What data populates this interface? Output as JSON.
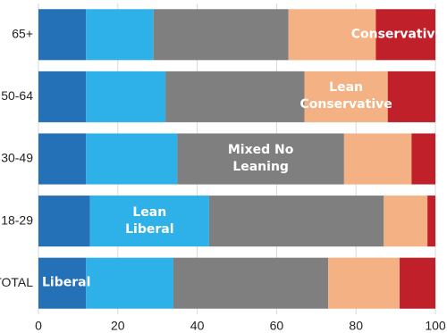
{
  "chart_data": {
    "type": "stacked-barh",
    "categories": [
      "65+",
      "50-64",
      "30-49",
      "18-29",
      "TOTAL"
    ],
    "series": [
      {
        "name": "Liberal",
        "color": "#2571b8",
        "values": [
          12,
          12,
          12,
          13,
          12
        ]
      },
      {
        "name": "Lean Liberal",
        "color": "#2eb1e8",
        "values": [
          17,
          20,
          23,
          30,
          22
        ]
      },
      {
        "name": "Mixed No Leaning",
        "color": "#7f7f7f",
        "values": [
          34,
          35,
          42,
          44,
          39
        ]
      },
      {
        "name": "Lean Conservative",
        "color": "#f4b183",
        "values": [
          22,
          21,
          17,
          11,
          18
        ]
      },
      {
        "name": "Conservative",
        "color": "#c0202a",
        "values": [
          15,
          12,
          6,
          2,
          9
        ]
      }
    ],
    "xlim": [
      0,
      100
    ],
    "xticks": [
      0,
      20,
      40,
      60,
      80,
      100
    ],
    "grid": true
  }
}
